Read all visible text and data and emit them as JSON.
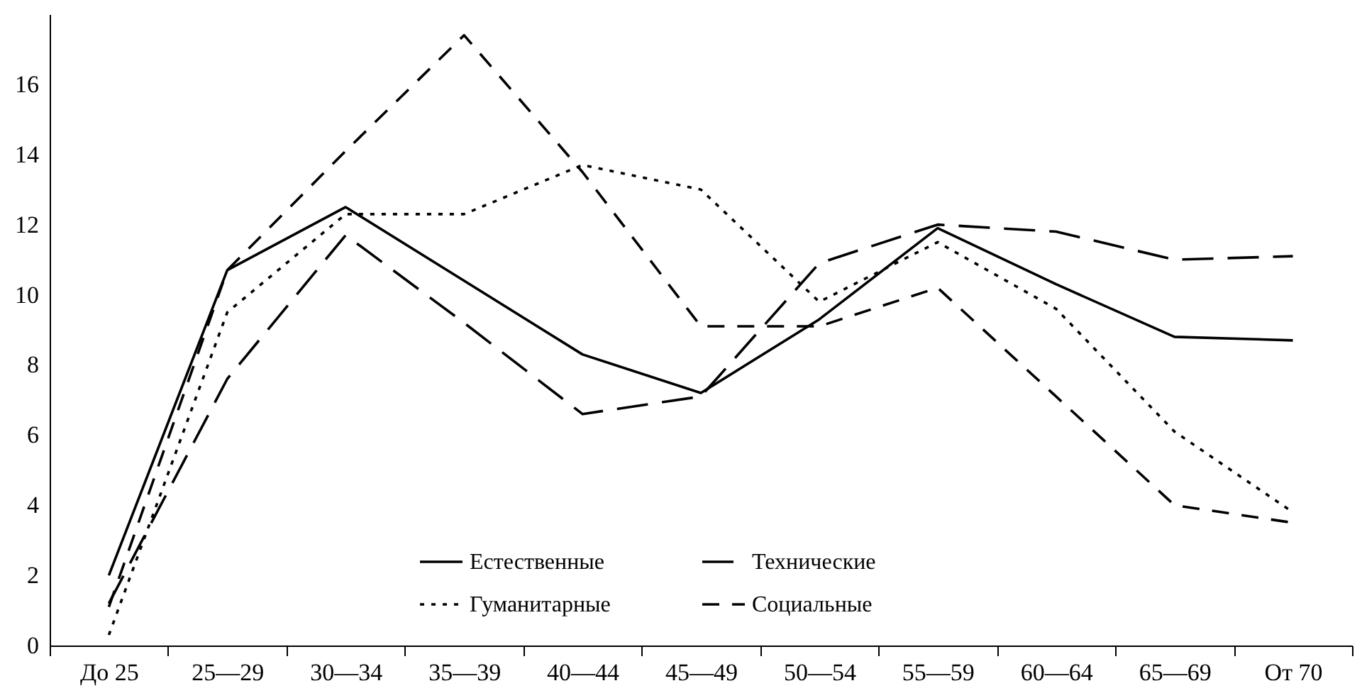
{
  "chart_data": {
    "type": "line",
    "categories": [
      "До 25",
      "25—29",
      "30—34",
      "35—39",
      "40—44",
      "45—49",
      "50—54",
      "55—59",
      "60—64",
      "65—69",
      "От 70"
    ],
    "series": [
      {
        "name": "Естественные",
        "color": "#000000",
        "line_style": "solid",
        "values": [
          2.0,
          10.7,
          12.5,
          10.4,
          8.3,
          7.2,
          9.3,
          11.9,
          10.3,
          8.8,
          8.7
        ]
      },
      {
        "name": "Технические",
        "color": "#000000",
        "line_style": "dashed",
        "values": [
          1.2,
          7.6,
          11.7,
          9.2,
          6.6,
          7.1,
          10.9,
          12.0,
          11.8,
          11.0,
          11.1
        ]
      },
      {
        "name": "Гуманитарные",
        "color": "#000000",
        "line_style": "dotted",
        "values": [
          0.3,
          9.5,
          12.3,
          12.3,
          13.7,
          13.0,
          9.8,
          11.5,
          9.6,
          6.1,
          3.8
        ]
      },
      {
        "name": "Социальные",
        "color": "#000000",
        "line_style": "dashed",
        "values": [
          1.1,
          10.7,
          14.1,
          17.4,
          13.5,
          9.1,
          9.1,
          10.2,
          7.1,
          4.0,
          3.5
        ]
      }
    ],
    "ylim": [
      0,
      18
    ],
    "yticks": [
      0,
      2,
      4,
      6,
      8,
      10,
      12,
      14,
      16
    ],
    "grid": false,
    "legend": "bottom",
    "marker": "none"
  }
}
